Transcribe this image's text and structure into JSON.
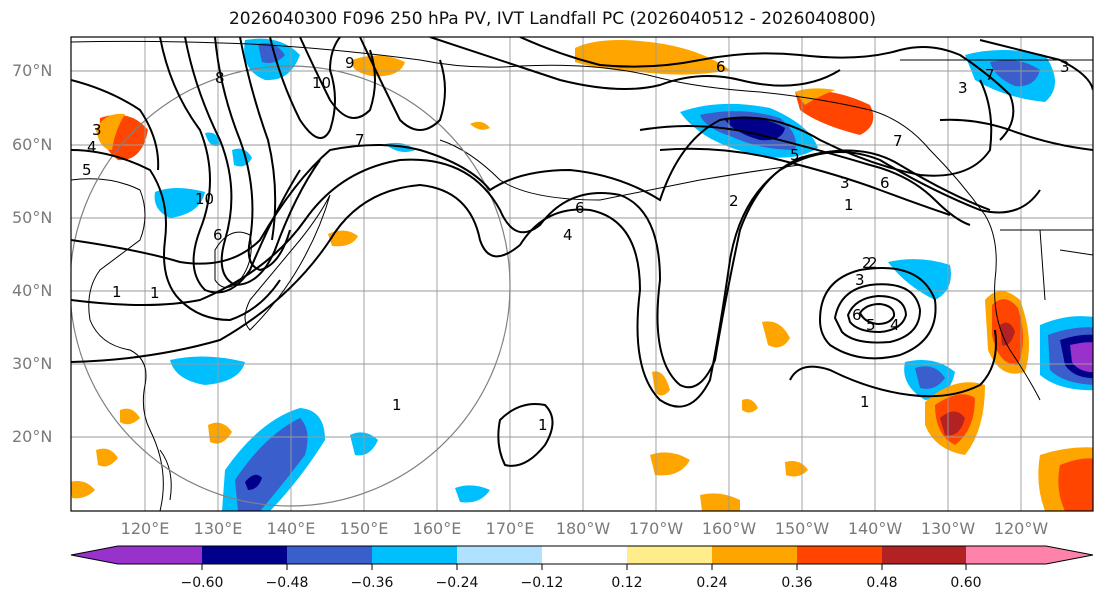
{
  "title": "2026040300 F096 250 hPa PV, IVT Landfall PC (2026040512 - 2026040800)",
  "lat_labels": [
    "70°N",
    "60°N",
    "50°N",
    "40°N",
    "30°N",
    "20°N"
  ],
  "lon_labels": [
    "120°E",
    "130°E",
    "140°E",
    "150°E",
    "160°E",
    "170°E",
    "180°W",
    "170°W",
    "160°W",
    "150°W",
    "140°W",
    "130°W",
    "120°W"
  ],
  "contour_labels": [
    "8",
    "10",
    "9",
    "7",
    "3",
    "4",
    "5",
    "6",
    "7",
    "10",
    "6",
    "4",
    "2",
    "1",
    "1",
    "6",
    "5",
    "3",
    "2",
    "7",
    "6",
    "3",
    "1",
    "2",
    "3",
    "6",
    "5",
    "4",
    "1",
    "1",
    "1",
    "3"
  ],
  "colorbar": {
    "ticks": [
      "−0.60",
      "−0.48",
      "−0.36",
      "−0.24",
      "−0.12",
      "0.12",
      "0.24",
      "0.36",
      "0.48",
      "0.60"
    ],
    "colors": [
      "#9932cc",
      "#00008b",
      "#3a5fcd",
      "#00bfff",
      "#b0e2ff",
      "#ffffff",
      "#ffec8b",
      "#ffa500",
      "#ff4500",
      "#b22222",
      "#ff82ab"
    ]
  },
  "fill_colors": {
    "lightblue": "#b0e2ff",
    "cyan": "#00bfff",
    "blue": "#3a5fcd",
    "navy": "#00008b",
    "purple": "#9932cc",
    "yellow": "#ffec8b",
    "orange": "#ffa500",
    "red": "#ff4500",
    "darkred": "#b22222"
  }
}
